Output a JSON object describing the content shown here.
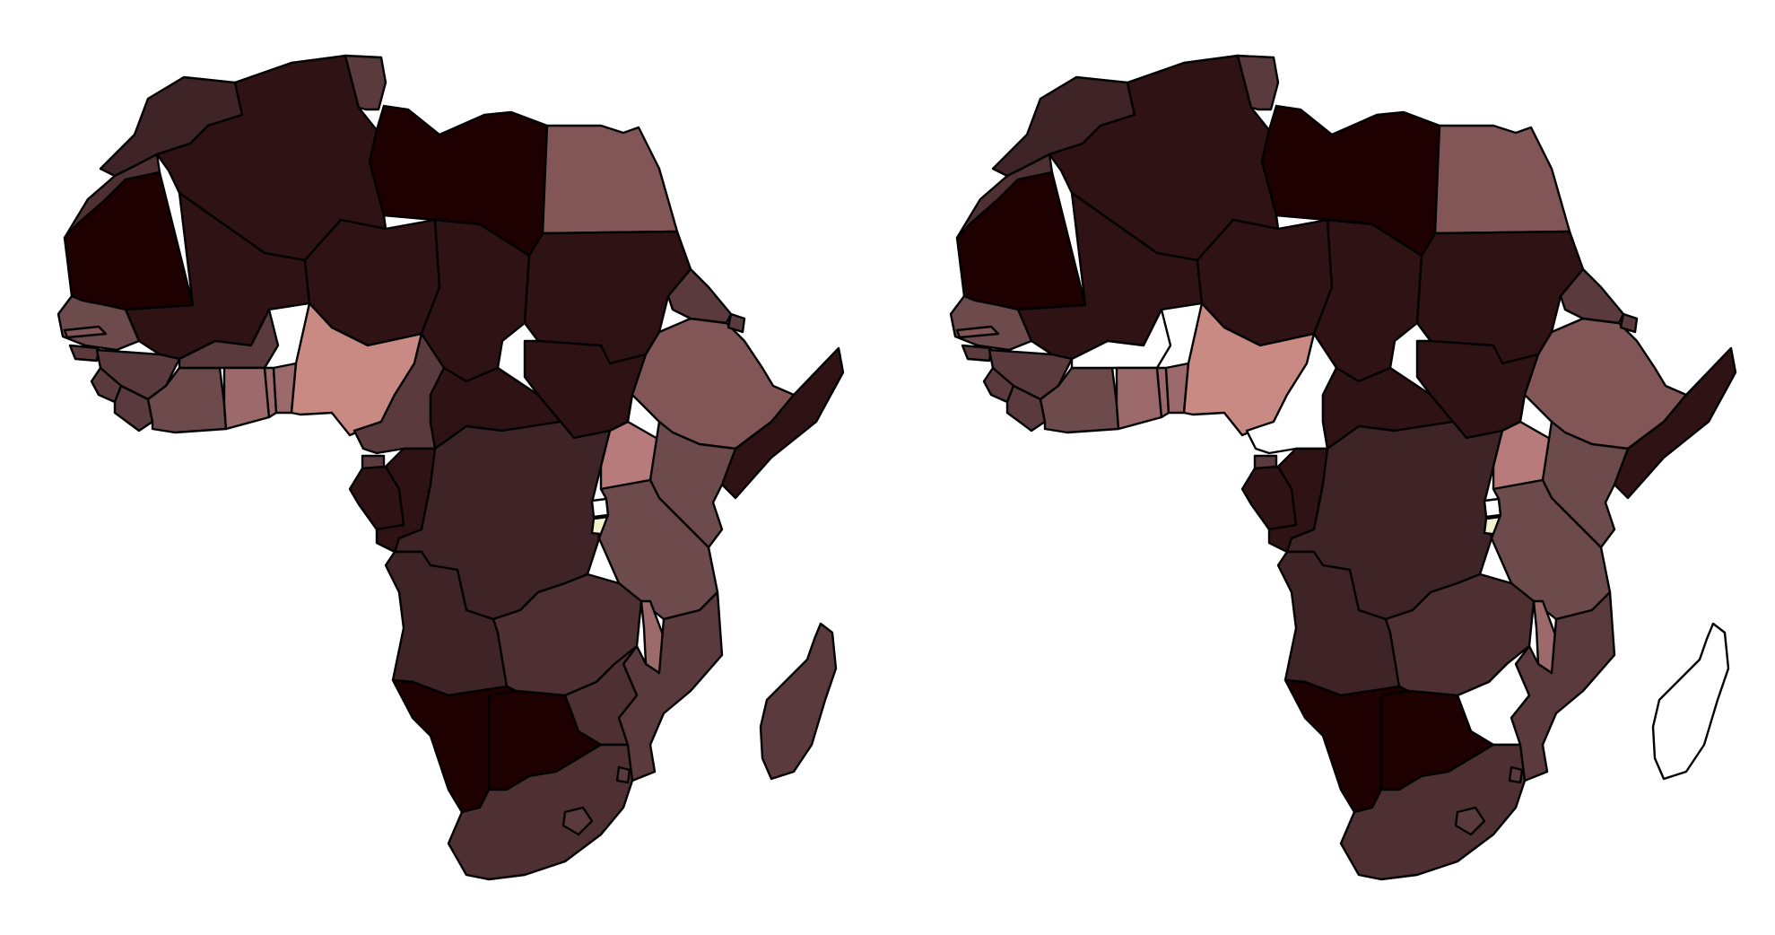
{
  "figure": {
    "panel_count": 2,
    "projection": "Africa outline",
    "colors": {
      "background": "#ffffff",
      "border": "#000000",
      "darkest": "#1e0001",
      "very_dark": "#2e1214",
      "dark": "#3e2426",
      "medium_dark": "#4f3032",
      "medium": "#5a3a3c",
      "medium_light": "#6d4a4c",
      "light": "#825657",
      "lighter": "#9c6a6b",
      "pink": "#b77b7b",
      "salmon": "#c88a83",
      "pale_yellow": "#f2f2cc",
      "no_data": "#ffffff"
    }
  },
  "maps": {
    "left": {
      "regions": [
        {
          "id": "morocco",
          "fill": "dark"
        },
        {
          "id": "western-sahara",
          "fill": "medium_dark"
        },
        {
          "id": "algeria",
          "fill": "very_dark"
        },
        {
          "id": "tunisia",
          "fill": "medium"
        },
        {
          "id": "libya",
          "fill": "darkest"
        },
        {
          "id": "egypt",
          "fill": "light"
        },
        {
          "id": "mauritania",
          "fill": "darkest"
        },
        {
          "id": "mali",
          "fill": "very_dark"
        },
        {
          "id": "niger",
          "fill": "very_dark"
        },
        {
          "id": "chad",
          "fill": "very_dark"
        },
        {
          "id": "sudan",
          "fill": "very_dark"
        },
        {
          "id": "senegal",
          "fill": "medium_light"
        },
        {
          "id": "gambia",
          "fill": "light"
        },
        {
          "id": "guinea-bissau",
          "fill": "medium"
        },
        {
          "id": "guinea",
          "fill": "medium"
        },
        {
          "id": "sierra-leone",
          "fill": "medium"
        },
        {
          "id": "liberia",
          "fill": "medium"
        },
        {
          "id": "ivory-coast",
          "fill": "medium_light"
        },
        {
          "id": "burkina-faso",
          "fill": "medium"
        },
        {
          "id": "ghana",
          "fill": "lighter"
        },
        {
          "id": "togo",
          "fill": "lighter"
        },
        {
          "id": "benin",
          "fill": "lighter"
        },
        {
          "id": "nigeria",
          "fill": "salmon"
        },
        {
          "id": "cameroon",
          "fill": "medium"
        },
        {
          "id": "central-african-republic",
          "fill": "very_dark"
        },
        {
          "id": "south-sudan",
          "fill": "very_dark"
        },
        {
          "id": "ethiopia",
          "fill": "light"
        },
        {
          "id": "eritrea",
          "fill": "medium"
        },
        {
          "id": "djibouti",
          "fill": "medium"
        },
        {
          "id": "somalia",
          "fill": "very_dark"
        },
        {
          "id": "equatorial-guinea",
          "fill": "medium"
        },
        {
          "id": "gabon",
          "fill": "very_dark"
        },
        {
          "id": "congo",
          "fill": "very_dark"
        },
        {
          "id": "dr-congo",
          "fill": "dark"
        },
        {
          "id": "uganda",
          "fill": "pink"
        },
        {
          "id": "kenya",
          "fill": "medium_light"
        },
        {
          "id": "rwanda",
          "fill": "no_data"
        },
        {
          "id": "burundi",
          "fill": "pale_yellow"
        },
        {
          "id": "tanzania",
          "fill": "medium_light"
        },
        {
          "id": "angola",
          "fill": "dark"
        },
        {
          "id": "zambia",
          "fill": "medium_dark"
        },
        {
          "id": "malawi",
          "fill": "lighter"
        },
        {
          "id": "mozambique",
          "fill": "medium"
        },
        {
          "id": "zimbabwe",
          "fill": "medium_dark"
        },
        {
          "id": "namibia",
          "fill": "darkest"
        },
        {
          "id": "botswana",
          "fill": "darkest"
        },
        {
          "id": "south-africa",
          "fill": "medium_dark"
        },
        {
          "id": "lesotho",
          "fill": "medium"
        },
        {
          "id": "swaziland",
          "fill": "medium"
        },
        {
          "id": "madagascar",
          "fill": "medium"
        }
      ]
    },
    "right": {
      "regions": [
        {
          "id": "morocco",
          "fill": "dark"
        },
        {
          "id": "western-sahara",
          "fill": "medium_dark"
        },
        {
          "id": "algeria",
          "fill": "very_dark"
        },
        {
          "id": "tunisia",
          "fill": "medium"
        },
        {
          "id": "libya",
          "fill": "darkest"
        },
        {
          "id": "egypt",
          "fill": "light"
        },
        {
          "id": "mauritania",
          "fill": "darkest"
        },
        {
          "id": "mali",
          "fill": "very_dark"
        },
        {
          "id": "niger",
          "fill": "very_dark"
        },
        {
          "id": "chad",
          "fill": "very_dark"
        },
        {
          "id": "sudan",
          "fill": "very_dark"
        },
        {
          "id": "senegal",
          "fill": "medium_light"
        },
        {
          "id": "gambia",
          "fill": "light"
        },
        {
          "id": "guinea-bissau",
          "fill": "medium"
        },
        {
          "id": "guinea",
          "fill": "medium"
        },
        {
          "id": "sierra-leone",
          "fill": "medium"
        },
        {
          "id": "liberia",
          "fill": "medium"
        },
        {
          "id": "ivory-coast",
          "fill": "medium_light"
        },
        {
          "id": "burkina-faso",
          "fill": "no_data"
        },
        {
          "id": "ghana",
          "fill": "lighter"
        },
        {
          "id": "togo",
          "fill": "lighter"
        },
        {
          "id": "benin",
          "fill": "lighter"
        },
        {
          "id": "nigeria",
          "fill": "salmon"
        },
        {
          "id": "cameroon",
          "fill": "no_data"
        },
        {
          "id": "central-african-republic",
          "fill": "very_dark"
        },
        {
          "id": "south-sudan",
          "fill": "very_dark"
        },
        {
          "id": "ethiopia",
          "fill": "light"
        },
        {
          "id": "eritrea",
          "fill": "medium"
        },
        {
          "id": "djibouti",
          "fill": "medium"
        },
        {
          "id": "somalia",
          "fill": "very_dark"
        },
        {
          "id": "equatorial-guinea",
          "fill": "medium"
        },
        {
          "id": "gabon",
          "fill": "very_dark"
        },
        {
          "id": "congo",
          "fill": "very_dark"
        },
        {
          "id": "dr-congo",
          "fill": "dark"
        },
        {
          "id": "uganda",
          "fill": "pink"
        },
        {
          "id": "kenya",
          "fill": "medium_light"
        },
        {
          "id": "rwanda",
          "fill": "no_data"
        },
        {
          "id": "burundi",
          "fill": "pale_yellow"
        },
        {
          "id": "tanzania",
          "fill": "medium_light"
        },
        {
          "id": "angola",
          "fill": "dark"
        },
        {
          "id": "zambia",
          "fill": "medium_dark"
        },
        {
          "id": "malawi",
          "fill": "lighter"
        },
        {
          "id": "mozambique",
          "fill": "medium"
        },
        {
          "id": "zimbabwe",
          "fill": "no_data"
        },
        {
          "id": "namibia",
          "fill": "darkest"
        },
        {
          "id": "botswana",
          "fill": "darkest"
        },
        {
          "id": "south-africa",
          "fill": "medium_dark"
        },
        {
          "id": "lesotho",
          "fill": "medium"
        },
        {
          "id": "swaziland",
          "fill": "medium"
        },
        {
          "id": "madagascar",
          "fill": "no_data"
        }
      ]
    }
  }
}
